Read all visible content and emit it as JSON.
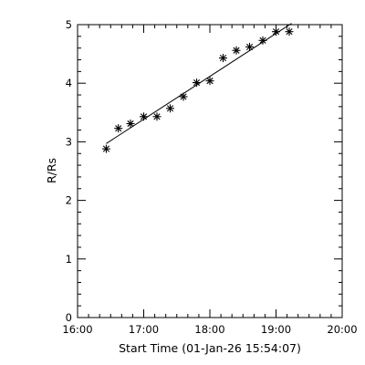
{
  "chart_data": {
    "type": "scatter",
    "title": "",
    "xlabel": "Start Time (01-Jan-26 15:54:07)",
    "ylabel": "R/Rs",
    "x_unit": "time of day",
    "xlim": [
      "16:00",
      "20:00"
    ],
    "ylim": [
      0,
      5
    ],
    "x_ticks": [
      "16:00",
      "17:00",
      "18:00",
      "19:00",
      "20:00"
    ],
    "y_ticks": [
      "0",
      "1",
      "2",
      "3",
      "4",
      "5"
    ],
    "grid": false,
    "marker": "asterisk",
    "series": [
      {
        "x": [
          "16:26",
          "16:37",
          "16:48",
          "17:00",
          "17:12",
          "17:24",
          "17:36",
          "17:48",
          "18:00",
          "18:12",
          "18:24",
          "18:36",
          "18:48",
          "19:00",
          "19:12"
        ],
        "y": [
          2.88,
          3.23,
          3.31,
          3.43,
          3.43,
          3.57,
          3.77,
          4.01,
          4.04,
          4.43,
          4.56,
          4.62,
          4.73,
          4.88,
          4.88
        ]
      }
    ],
    "fit_line": {
      "x": [
        "16:26",
        "19:14"
      ],
      "y": [
        2.97,
        5.02
      ]
    }
  }
}
